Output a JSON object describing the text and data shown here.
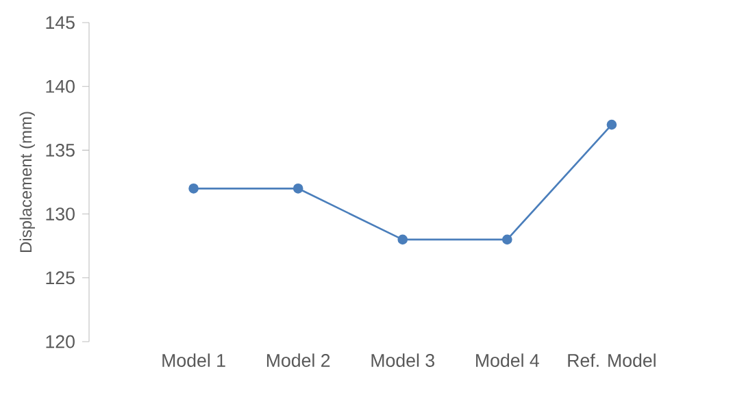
{
  "chart_data": {
    "type": "line",
    "ylabel": "Displacement (mm)",
    "categories": [
      "Model 1",
      "Model 2",
      "Model 3",
      "Model 4",
      "Ref. Model"
    ],
    "series": [
      {
        "color": "#4a7ebb",
        "values": [
          132,
          132,
          128,
          128,
          137
        ]
      }
    ],
    "ylim": [
      120,
      145
    ],
    "yticks": [
      120,
      125,
      130,
      135,
      140,
      145
    ],
    "grid": false,
    "marker": "circle",
    "line_style": "solid"
  }
}
